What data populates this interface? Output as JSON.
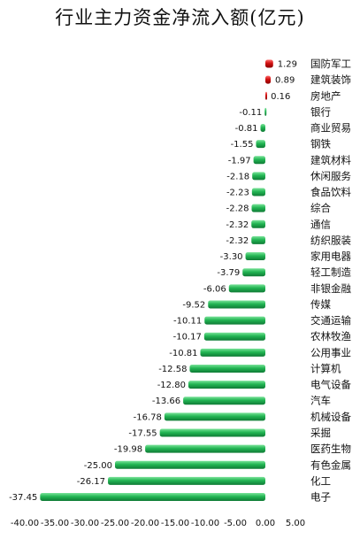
{
  "chart_data": {
    "type": "bar",
    "orientation": "horizontal",
    "title": "行业主力资金净流入额(亿元)",
    "categories": [
      "国防军工",
      "建筑装饰",
      "房地产",
      "银行",
      "商业贸易",
      "钢铁",
      "建筑材料",
      "休闲服务",
      "食品饮料",
      "综合",
      "通信",
      "纺织服装",
      "家用电器",
      "轻工制造",
      "非银金融",
      "传媒",
      "交通运输",
      "农林牧渔",
      "公用事业",
      "计算机",
      "电气设备",
      "汽车",
      "机械设备",
      "采掘",
      "医药生物",
      "有色金属",
      "化工",
      "电子"
    ],
    "values": [
      1.29,
      0.89,
      0.16,
      -0.11,
      -0.81,
      -1.55,
      -1.97,
      -2.18,
      -2.23,
      -2.28,
      -2.32,
      -2.32,
      -3.3,
      -3.79,
      -6.06,
      -9.52,
      -10.11,
      -10.17,
      -10.81,
      -12.58,
      -12.8,
      -13.66,
      -16.78,
      -17.55,
      -19.98,
      -25.0,
      -26.17,
      -37.45
    ],
    "value_labels": [
      "1.29",
      "0.89",
      "0.16",
      "-0.11",
      "-0.81",
      "-1.55",
      "-1.97",
      "-2.18",
      "-2.23",
      "-2.28",
      "-2.32",
      "-2.32",
      "-3.30",
      "-3.79",
      "-6.06",
      "-9.52",
      "-10.11",
      "-10.17",
      "-10.81",
      "-12.58",
      "-12.80",
      "-13.66",
      "-16.78",
      "-17.55",
      "-19.98",
      "-25.00",
      "-26.17",
      "-37.45"
    ],
    "xlim": [
      -40,
      5
    ],
    "xticks": [
      -40,
      -35,
      -30,
      -25,
      -20,
      -15,
      -10,
      -5,
      0,
      5
    ],
    "xtick_labels": [
      "-40.00",
      "-35.00",
      "-30.00",
      "-25.00",
      "-20.00",
      "-15.00",
      "-10.00",
      "-5.00",
      "0.00",
      "5.00"
    ],
    "grid": false,
    "legend": "none",
    "colors": {
      "positive": "#c00000",
      "negative": "#1aa34a"
    }
  }
}
